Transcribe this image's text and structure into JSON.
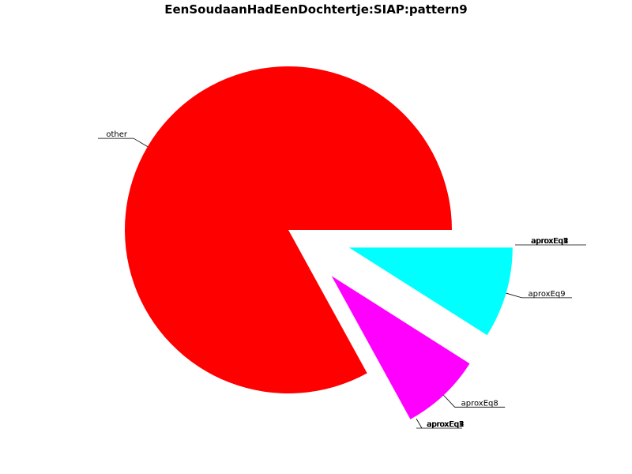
{
  "chart_data": {
    "type": "pie",
    "title": "EenSoudaanHadEenDochtertje:SIAP:pattern9",
    "slices": [
      {
        "label": "other",
        "value": 83,
        "color": "#ff0000",
        "explode": false
      },
      {
        "label": "aproxEq8",
        "value": 8,
        "color": "#ff00ff",
        "explode": true
      },
      {
        "label": "aproxEq9",
        "value": 9,
        "color": "#00ffff",
        "explode": true
      }
    ],
    "overlapping_labels": [
      {
        "position": "right",
        "texts": [
          "aproxEq1",
          "aproxEq2",
          "aproxEq3",
          "aproxEq4",
          "aproxEq5"
        ]
      },
      {
        "position": "bottom",
        "texts": [
          "aproxEq1",
          "aproxEq2",
          "aproxEq3",
          "aproxEq4",
          "aproxEq5"
        ]
      }
    ]
  }
}
